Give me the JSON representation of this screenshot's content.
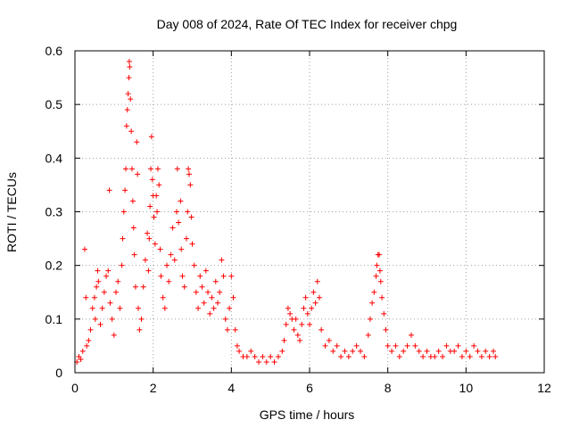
{
  "chart_data": {
    "type": "scatter",
    "title": "Day 008 of 2024, Rate Of TEC Index for receiver chpg",
    "xlabel": "GPS time / hours",
    "ylabel": "ROTI / TECUs",
    "xlim": [
      0,
      12
    ],
    "ylim": [
      0,
      0.6
    ],
    "x_ticks": [
      "0",
      "2",
      "4",
      "6",
      "8",
      "10",
      "12"
    ],
    "y_ticks": [
      "0",
      "0.1",
      "0.2",
      "0.3",
      "0.4",
      "0.5",
      "0.6"
    ],
    "grid": true,
    "marker": "plus",
    "colors": {
      "series": "#ff0000",
      "grid": "#a0a0a0",
      "axes": "#000000"
    },
    "series": [
      {
        "name": "ROTI",
        "points": [
          [
            0.05,
            0.02
          ],
          [
            0.1,
            0.03
          ],
          [
            0.15,
            0.025
          ],
          [
            0.2,
            0.04
          ],
          [
            0.25,
            0.23
          ],
          [
            0.28,
            0.14
          ],
          [
            0.3,
            0.05
          ],
          [
            0.35,
            0.06
          ],
          [
            0.4,
            0.08
          ],
          [
            0.45,
            0.12
          ],
          [
            0.5,
            0.14
          ],
          [
            0.52,
            0.1
          ],
          [
            0.55,
            0.16
          ],
          [
            0.58,
            0.19
          ],
          [
            0.6,
            0.17
          ],
          [
            0.65,
            0.09
          ],
          [
            0.7,
            0.12
          ],
          [
            0.75,
            0.15
          ],
          [
            0.8,
            0.18
          ],
          [
            0.85,
            0.19
          ],
          [
            0.88,
            0.34
          ],
          [
            0.9,
            0.13
          ],
          [
            0.95,
            0.1
          ],
          [
            1.0,
            0.07
          ],
          [
            1.05,
            0.15
          ],
          [
            1.1,
            0.17
          ],
          [
            1.15,
            0.12
          ],
          [
            1.2,
            0.2
          ],
          [
            1.22,
            0.25
          ],
          [
            1.25,
            0.3
          ],
          [
            1.28,
            0.34
          ],
          [
            1.3,
            0.38
          ],
          [
            1.32,
            0.46
          ],
          [
            1.34,
            0.49
          ],
          [
            1.36,
            0.52
          ],
          [
            1.38,
            0.55
          ],
          [
            1.39,
            0.58
          ],
          [
            1.4,
            0.57
          ],
          [
            1.42,
            0.51
          ],
          [
            1.44,
            0.45
          ],
          [
            1.46,
            0.38
          ],
          [
            1.48,
            0.32
          ],
          [
            1.5,
            0.27
          ],
          [
            1.52,
            0.22
          ],
          [
            1.55,
            0.16
          ],
          [
            1.58,
            0.43
          ],
          [
            1.6,
            0.37
          ],
          [
            1.62,
            0.12
          ],
          [
            1.65,
            0.08
          ],
          [
            1.7,
            0.1
          ],
          [
            1.75,
            0.16
          ],
          [
            1.8,
            0.21
          ],
          [
            1.85,
            0.26
          ],
          [
            1.88,
            0.19
          ],
          [
            1.9,
            0.25
          ],
          [
            1.92,
            0.31
          ],
          [
            1.94,
            0.38
          ],
          [
            1.96,
            0.44
          ],
          [
            1.98,
            0.36
          ],
          [
            2.0,
            0.33
          ],
          [
            2.02,
            0.29
          ],
          [
            2.05,
            0.24
          ],
          [
            2.08,
            0.33
          ],
          [
            2.1,
            0.3
          ],
          [
            2.12,
            0.38
          ],
          [
            2.15,
            0.35
          ],
          [
            2.18,
            0.23
          ],
          [
            2.2,
            0.18
          ],
          [
            2.25,
            0.14
          ],
          [
            2.3,
            0.12
          ],
          [
            2.35,
            0.2
          ],
          [
            2.4,
            0.17
          ],
          [
            2.45,
            0.22
          ],
          [
            2.5,
            0.27
          ],
          [
            2.55,
            0.21
          ],
          [
            2.6,
            0.3
          ],
          [
            2.62,
            0.38
          ],
          [
            2.65,
            0.28
          ],
          [
            2.7,
            0.32
          ],
          [
            2.72,
            0.23
          ],
          [
            2.75,
            0.18
          ],
          [
            2.8,
            0.16
          ],
          [
            2.85,
            0.25
          ],
          [
            2.88,
            0.3
          ],
          [
            2.9,
            0.38
          ],
          [
            2.92,
            0.37
          ],
          [
            2.95,
            0.35
          ],
          [
            2.98,
            0.29
          ],
          [
            3.0,
            0.24
          ],
          [
            3.05,
            0.2
          ],
          [
            3.1,
            0.15
          ],
          [
            3.15,
            0.12
          ],
          [
            3.2,
            0.18
          ],
          [
            3.25,
            0.16
          ],
          [
            3.3,
            0.13
          ],
          [
            3.35,
            0.19
          ],
          [
            3.4,
            0.15
          ],
          [
            3.45,
            0.11
          ],
          [
            3.5,
            0.14
          ],
          [
            3.55,
            0.12
          ],
          [
            3.6,
            0.17
          ],
          [
            3.65,
            0.13
          ],
          [
            3.7,
            0.15
          ],
          [
            3.75,
            0.21
          ],
          [
            3.8,
            0.18
          ],
          [
            3.85,
            0.1
          ],
          [
            3.9,
            0.08
          ],
          [
            3.95,
            0.12
          ],
          [
            4.0,
            0.18
          ],
          [
            4.05,
            0.14
          ],
          [
            4.1,
            0.08
          ],
          [
            4.15,
            0.05
          ],
          [
            4.2,
            0.04
          ],
          [
            4.3,
            0.03
          ],
          [
            4.4,
            0.03
          ],
          [
            4.5,
            0.04
          ],
          [
            4.6,
            0.03
          ],
          [
            4.7,
            0.02
          ],
          [
            4.8,
            0.03
          ],
          [
            4.9,
            0.02
          ],
          [
            5.0,
            0.03
          ],
          [
            5.1,
            0.02
          ],
          [
            5.2,
            0.03
          ],
          [
            5.3,
            0.04
          ],
          [
            5.35,
            0.06
          ],
          [
            5.4,
            0.09
          ],
          [
            5.45,
            0.12
          ],
          [
            5.5,
            0.11
          ],
          [
            5.55,
            0.1
          ],
          [
            5.6,
            0.08
          ],
          [
            5.65,
            0.1
          ],
          [
            5.7,
            0.07
          ],
          [
            5.75,
            0.06
          ],
          [
            5.8,
            0.09
          ],
          [
            5.85,
            0.12
          ],
          [
            5.9,
            0.14
          ],
          [
            5.95,
            0.11
          ],
          [
            6.0,
            0.09
          ],
          [
            6.05,
            0.12
          ],
          [
            6.1,
            0.15
          ],
          [
            6.15,
            0.13
          ],
          [
            6.2,
            0.17
          ],
          [
            6.25,
            0.14
          ],
          [
            6.3,
            0.08
          ],
          [
            6.4,
            0.05
          ],
          [
            6.5,
            0.06
          ],
          [
            6.6,
            0.04
          ],
          [
            6.7,
            0.05
          ],
          [
            6.8,
            0.03
          ],
          [
            6.9,
            0.04
          ],
          [
            7.0,
            0.03
          ],
          [
            7.1,
            0.04
          ],
          [
            7.2,
            0.05
          ],
          [
            7.3,
            0.04
          ],
          [
            7.4,
            0.03
          ],
          [
            7.5,
            0.07
          ],
          [
            7.55,
            0.1
          ],
          [
            7.6,
            0.13
          ],
          [
            7.65,
            0.15
          ],
          [
            7.7,
            0.18
          ],
          [
            7.72,
            0.2
          ],
          [
            7.75,
            0.22
          ],
          [
            7.78,
            0.22
          ],
          [
            7.8,
            0.19
          ],
          [
            7.82,
            0.17
          ],
          [
            7.85,
            0.14
          ],
          [
            7.9,
            0.11
          ],
          [
            7.95,
            0.08
          ],
          [
            8.0,
            0.05
          ],
          [
            8.1,
            0.04
          ],
          [
            8.2,
            0.05
          ],
          [
            8.3,
            0.03
          ],
          [
            8.4,
            0.04
          ],
          [
            8.5,
            0.05
          ],
          [
            8.6,
            0.07
          ],
          [
            8.7,
            0.05
          ],
          [
            8.8,
            0.04
          ],
          [
            8.9,
            0.03
          ],
          [
            9.0,
            0.04
          ],
          [
            9.1,
            0.03
          ],
          [
            9.2,
            0.03
          ],
          [
            9.3,
            0.04
          ],
          [
            9.4,
            0.03
          ],
          [
            9.5,
            0.05
          ],
          [
            9.6,
            0.04
          ],
          [
            9.7,
            0.04
          ],
          [
            9.8,
            0.05
          ],
          [
            9.9,
            0.03
          ],
          [
            10.0,
            0.04
          ],
          [
            10.1,
            0.03
          ],
          [
            10.2,
            0.05
          ],
          [
            10.3,
            0.04
          ],
          [
            10.4,
            0.03
          ],
          [
            10.5,
            0.04
          ],
          [
            10.6,
            0.03
          ],
          [
            10.7,
            0.04
          ],
          [
            10.75,
            0.03
          ]
        ]
      }
    ]
  }
}
